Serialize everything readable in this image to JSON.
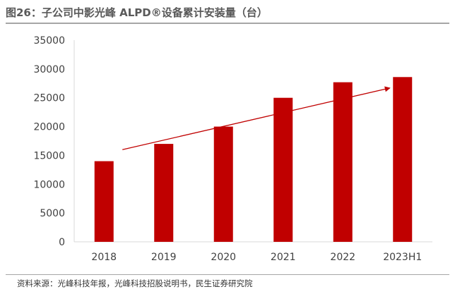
{
  "title": "图26：子公司中影光峰 ALPD®设备累计安装量（台）",
  "source": "资料来源：光峰科技年报，光峰科技招股说明书，民生证券研究院",
  "colors": {
    "bar": "#c00000",
    "arrow": "#c00000",
    "axis": "#d9d9d9",
    "text": "#404040"
  },
  "chart_data": {
    "type": "bar",
    "categories": [
      "2018",
      "2019",
      "2020",
      "2021",
      "2022",
      "2023H1"
    ],
    "values": [
      14000,
      17000,
      20000,
      25000,
      27700,
      28600
    ],
    "ylim": [
      0,
      35000
    ],
    "yticks": [
      0,
      5000,
      10000,
      15000,
      20000,
      25000,
      30000,
      35000
    ],
    "grid": false,
    "legend": "none",
    "annotations": [
      {
        "type": "trend-arrow",
        "from": {
          "category": "2018",
          "value": 16000
        },
        "to": {
          "category": "2023H1",
          "value": 26700
        }
      }
    ]
  }
}
